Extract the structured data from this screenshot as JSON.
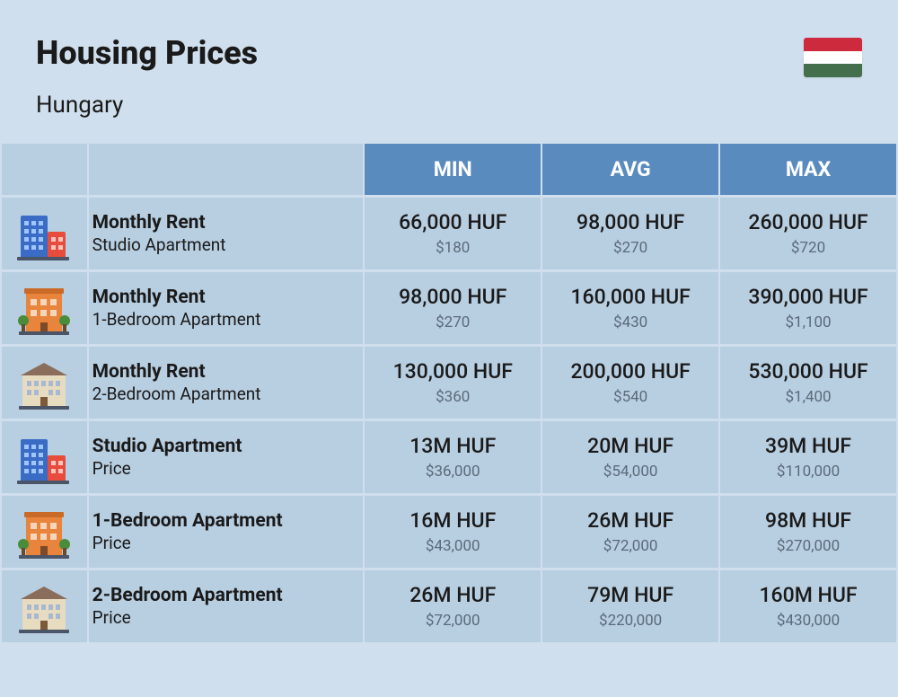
{
  "title": "Housing Prices",
  "country": "Hungary",
  "flag_colors": [
    "#cd2a3e",
    "#ffffff",
    "#436f4d"
  ],
  "columns": [
    "MIN",
    "AVG",
    "MAX"
  ],
  "rows": [
    {
      "icon": "studio",
      "label_title": "Monthly Rent",
      "label_sub": "Studio Apartment",
      "min_main": "66,000 HUF",
      "min_sub": "$180",
      "avg_main": "98,000 HUF",
      "avg_sub": "$270",
      "max_main": "260,000 HUF",
      "max_sub": "$720"
    },
    {
      "icon": "onebed",
      "label_title": "Monthly Rent",
      "label_sub": "1-Bedroom Apartment",
      "min_main": "98,000 HUF",
      "min_sub": "$270",
      "avg_main": "160,000 HUF",
      "avg_sub": "$430",
      "max_main": "390,000 HUF",
      "max_sub": "$1,100"
    },
    {
      "icon": "twobed",
      "label_title": "Monthly Rent",
      "label_sub": "2-Bedroom Apartment",
      "min_main": "130,000 HUF",
      "min_sub": "$360",
      "avg_main": "200,000 HUF",
      "avg_sub": "$540",
      "max_main": "530,000 HUF",
      "max_sub": "$1,400"
    },
    {
      "icon": "studio",
      "label_title": "Studio Apartment",
      "label_sub": "Price",
      "min_main": "13M HUF",
      "min_sub": "$36,000",
      "avg_main": "20M HUF",
      "avg_sub": "$54,000",
      "max_main": "39M HUF",
      "max_sub": "$110,000"
    },
    {
      "icon": "onebed",
      "label_title": "1-Bedroom Apartment",
      "label_sub": "Price",
      "min_main": "16M HUF",
      "min_sub": "$43,000",
      "avg_main": "26M HUF",
      "avg_sub": "$72,000",
      "max_main": "98M HUF",
      "max_sub": "$270,000"
    },
    {
      "icon": "twobed",
      "label_title": "2-Bedroom Apartment",
      "label_sub": "Price",
      "min_main": "26M HUF",
      "min_sub": "$72,000",
      "avg_main": "79M HUF",
      "avg_sub": "$220,000",
      "max_main": "160M HUF",
      "max_sub": "$430,000"
    }
  ]
}
